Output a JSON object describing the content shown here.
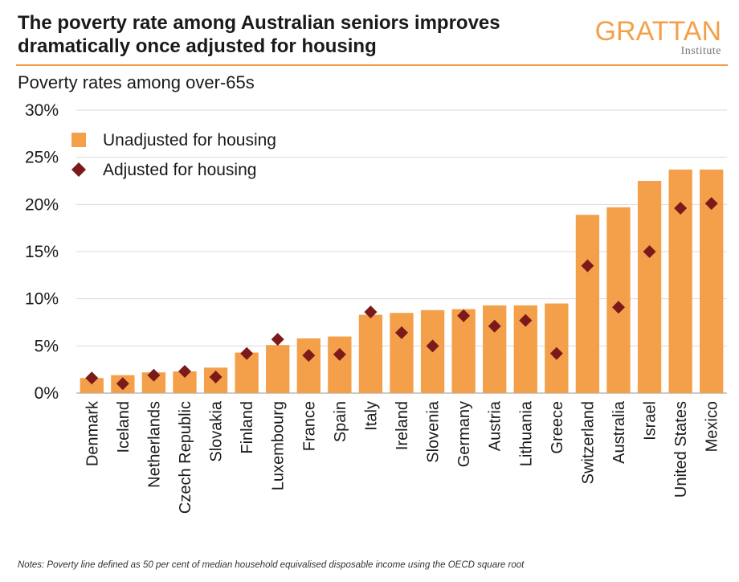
{
  "header": {
    "title_line1": "The poverty rate among Australian seniors improves",
    "title_line2": "dramatically once adjusted for housing",
    "logo_brand": "GRATTAN",
    "logo_sub": "Institute"
  },
  "notes": "Notes: Poverty line defined as 50 per cent of median household equivalised disposable income using the OECD square root",
  "colors": {
    "bar": "#f4a04a",
    "marker": "#7b1a1a",
    "accent": "#f4a04a"
  },
  "chart_data": {
    "type": "bar",
    "title": "The poverty rate among Australian seniors improves dramatically once adjusted for housing",
    "subtitle": "Poverty rates among over-65s",
    "ylim": [
      0,
      30
    ],
    "yticks": [
      "0%",
      "5%",
      "10%",
      "15%",
      "20%",
      "25%",
      "30%"
    ],
    "ytick_values": [
      0,
      5,
      10,
      15,
      20,
      25,
      30
    ],
    "categories": [
      "Denmark",
      "Iceland",
      "Netherlands",
      "Czech Republic",
      "Slovakia",
      "Finland",
      "Luxembourg",
      "France",
      "Spain",
      "Italy",
      "Ireland",
      "Slovenia",
      "Germany",
      "Austria",
      "Lithuania",
      "Greece",
      "Switzerland",
      "Australia",
      "Israel",
      "United States",
      "Mexico"
    ],
    "series": [
      {
        "name": "Unadjusted for housing",
        "kind": "bar",
        "values": [
          1.6,
          1.9,
          2.2,
          2.3,
          2.7,
          4.3,
          5.1,
          5.8,
          6.0,
          8.3,
          8.5,
          8.8,
          8.9,
          9.3,
          9.3,
          9.5,
          18.9,
          19.7,
          22.5,
          23.7,
          23.7
        ]
      },
      {
        "name": "Adjusted for housing",
        "kind": "marker",
        "values": [
          1.6,
          1.0,
          1.9,
          2.3,
          1.7,
          4.2,
          5.7,
          4.0,
          4.1,
          8.6,
          6.4,
          5.0,
          8.2,
          7.1,
          7.7,
          4.2,
          13.5,
          9.1,
          15.0,
          19.6,
          20.1
        ]
      }
    ],
    "legend_position": "top-left",
    "grid": "horizontal"
  }
}
